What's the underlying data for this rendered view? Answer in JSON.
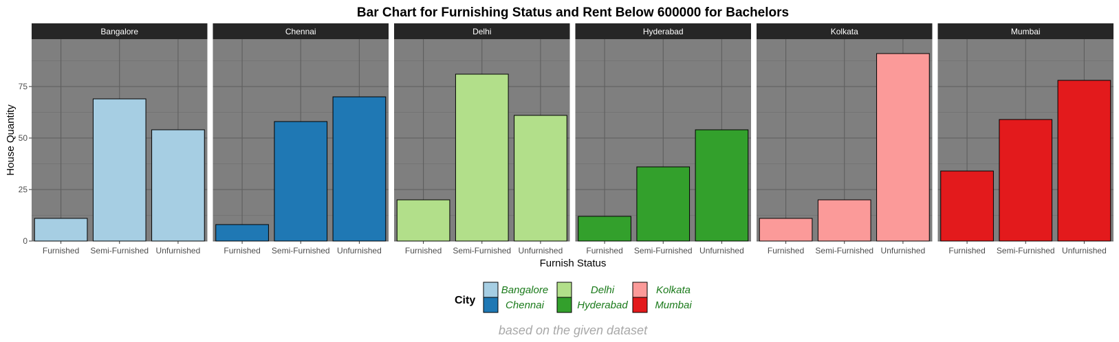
{
  "chart_data": {
    "type": "bar",
    "title": "Bar Chart for Furnishing Status and Rent Below 600000 for Bachelors",
    "xlabel": "Furnish Status",
    "ylabel": "House Quantity",
    "caption": "based on the given dataset",
    "categories": [
      "Furnished",
      "Semi-Furnished",
      "Unfurnished"
    ],
    "ylim": [
      0,
      98
    ],
    "yticks": [
      0,
      25,
      50,
      75
    ],
    "grid": true,
    "facets": [
      {
        "name": "Bangalore",
        "color": "#a6cee3",
        "values": [
          11,
          69,
          54
        ]
      },
      {
        "name": "Chennai",
        "color": "#1f78b4",
        "values": [
          8,
          58,
          70
        ]
      },
      {
        "name": "Delhi",
        "color": "#b2df8a",
        "values": [
          20,
          81,
          61
        ]
      },
      {
        "name": "Hyderabad",
        "color": "#33a02c",
        "values": [
          12,
          36,
          54
        ]
      },
      {
        "name": "Kolkata",
        "color": "#fb9a99",
        "values": [
          11,
          20,
          91
        ]
      },
      {
        "name": "Mumbai",
        "color": "#e31a1c",
        "values": [
          34,
          59,
          78
        ]
      }
    ],
    "legend": {
      "title": "City",
      "position": "bottom",
      "entries": [
        "Bangalore",
        "Chennai",
        "Delhi",
        "Hyderabad",
        "Kolkata",
        "Mumbai"
      ]
    }
  }
}
